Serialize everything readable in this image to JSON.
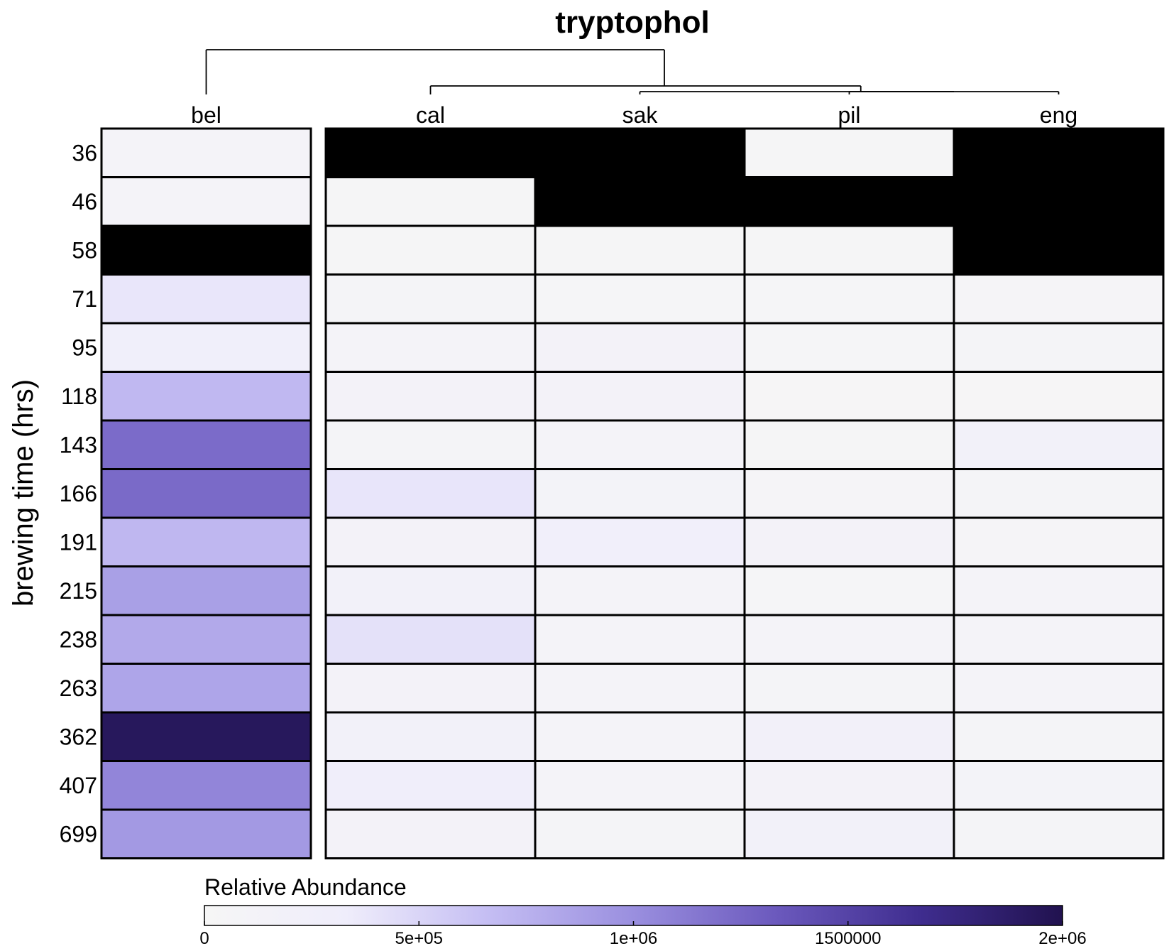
{
  "chart_data": {
    "type": "heatmap",
    "title": "tryptophol",
    "ylabel": "brewing time (hrs)",
    "columns": [
      "bel",
      "cal",
      "sak",
      "pil",
      "eng"
    ],
    "rows": [
      "36",
      "46",
      "58",
      "71",
      "95",
      "118",
      "143",
      "166",
      "191",
      "215",
      "238",
      "263",
      "362",
      "407",
      "699"
    ],
    "values": [
      [
        100000,
        null,
        null,
        30000,
        null
      ],
      [
        100000,
        30000,
        null,
        null,
        null
      ],
      [
        null,
        30000,
        30000,
        30000,
        null
      ],
      [
        380000,
        90000,
        50000,
        50000,
        60000
      ],
      [
        270000,
        110000,
        140000,
        50000,
        80000
      ],
      [
        700000,
        150000,
        140000,
        20000,
        20000
      ],
      [
        1220000,
        80000,
        110000,
        30000,
        200000
      ],
      [
        1230000,
        390000,
        120000,
        60000,
        80000
      ],
      [
        710000,
        160000,
        260000,
        150000,
        70000
      ],
      [
        880000,
        190000,
        100000,
        50000,
        110000
      ],
      [
        810000,
        420000,
        100000,
        110000,
        110000
      ],
      [
        840000,
        150000,
        110000,
        80000,
        110000
      ],
      [
        1930000,
        200000,
        100000,
        210000,
        90000
      ],
      [
        1060000,
        280000,
        100000,
        130000,
        120000
      ],
      [
        930000,
        160000,
        80000,
        170000,
        80000
      ]
    ],
    "missing_color": "#000000",
    "colorbar": {
      "title": "Relative Abundance",
      "range": [
        0,
        2000000
      ],
      "ticks": [
        0,
        500000,
        1000000,
        1500000,
        2000000
      ],
      "tick_labels": [
        "0",
        "5e+05",
        "1e+06",
        "1500000",
        "2e+06"
      ],
      "colors": [
        "#f6f6f6",
        "#efedfb",
        "#c4bdf3",
        "#9a8fdf",
        "#6b59bd",
        "#3f2d8f",
        "#21124f"
      ]
    },
    "column_split_after": "bel",
    "dendrogram": [
      {
        "left": "bel",
        "right": [
          "cal",
          "sak",
          "pil",
          "eng"
        ]
      },
      {
        "left": "cal",
        "right": [
          "sak",
          "pil",
          "eng"
        ]
      },
      {
        "left": "sak",
        "right": [
          "pil",
          "eng"
        ]
      },
      {
        "left": "pil",
        "right": "eng"
      }
    ]
  }
}
